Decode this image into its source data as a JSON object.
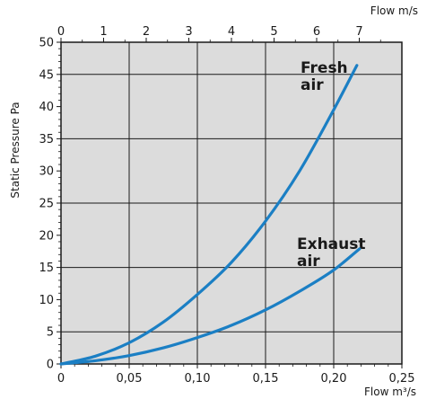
{
  "chart_data": {
    "type": "line",
    "xlabel": "Flow m³/s",
    "x2label": "Flow m/s",
    "ylabel": "Static Pressure Pa",
    "xlim": [
      0,
      0.25
    ],
    "x2lim": [
      0,
      8
    ],
    "ylim": [
      0,
      50
    ],
    "x_ticks": [
      "0",
      "0,05",
      "0,10",
      "0,15",
      "0,20",
      "0,25"
    ],
    "x2_ticks": [
      "0",
      "1",
      "2",
      "3",
      "4",
      "5",
      "6",
      "7"
    ],
    "y_ticks": [
      "0",
      "5",
      "10",
      "15",
      "20",
      "25",
      "30",
      "35",
      "40",
      "45",
      "50"
    ],
    "grid": true,
    "plot_background": "#dcdcdc",
    "series": [
      {
        "name": "Fresh air",
        "color": "#1b7fc4",
        "x": [
          0,
          0.025,
          0.05,
          0.075,
          0.1,
          0.125,
          0.15,
          0.175,
          0.2,
          0.217
        ],
        "y": [
          0,
          1.2,
          3.3,
          6.5,
          10.8,
          15.8,
          22.2,
          30.0,
          39.5,
          46.4
        ]
      },
      {
        "name": "Exhaust air",
        "color": "#1b7fc4",
        "x": [
          0,
          0.025,
          0.05,
          0.075,
          0.1,
          0.125,
          0.15,
          0.175,
          0.2,
          0.219
        ],
        "y": [
          0,
          0.5,
          1.3,
          2.5,
          4.1,
          6.0,
          8.4,
          11.3,
          14.6,
          17.9
        ]
      }
    ],
    "annotations": [
      {
        "series": "Fresh air",
        "lines": [
          "Fresh",
          "air"
        ]
      },
      {
        "series": "Exhaust air",
        "lines": [
          "Exhaust",
          "air"
        ]
      }
    ]
  }
}
